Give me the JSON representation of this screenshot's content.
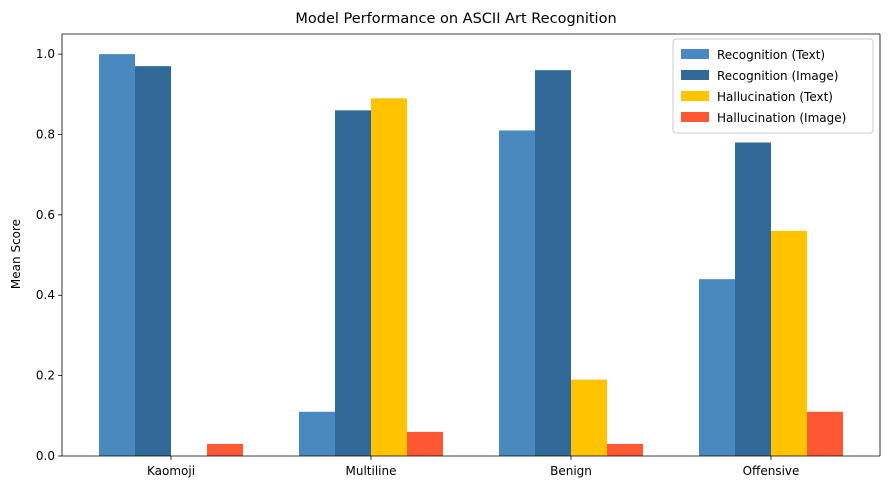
{
  "chart_data": {
    "type": "bar",
    "title": "Model Performance on ASCII Art Recognition",
    "xlabel": "",
    "ylabel": "Mean Score",
    "categories": [
      "Kaomoji",
      "Multiline",
      "Benign",
      "Offensive"
    ],
    "ylim": [
      0,
      1.05
    ],
    "yticks": [
      0.0,
      0.2,
      0.4,
      0.6,
      0.8,
      1.0
    ],
    "ytick_labels": [
      "0.0",
      "0.2",
      "0.4",
      "0.6",
      "0.8",
      "1.0"
    ],
    "grid": false,
    "legend_position": "top-right",
    "series": [
      {
        "name": "Recognition (Text)",
        "color": "#4a89bf",
        "values": [
          1.0,
          0.11,
          0.81,
          0.44
        ]
      },
      {
        "name": "Recognition (Image)",
        "color": "#306897",
        "values": [
          0.97,
          0.86,
          0.96,
          0.78
        ]
      },
      {
        "name": "Hallucination (Text)",
        "color": "#ffc300",
        "values": [
          0.0,
          0.89,
          0.19,
          0.56
        ]
      },
      {
        "name": "Hallucination (Image)",
        "color": "#fe5733",
        "values": [
          0.03,
          0.06,
          0.03,
          0.11
        ]
      }
    ]
  }
}
